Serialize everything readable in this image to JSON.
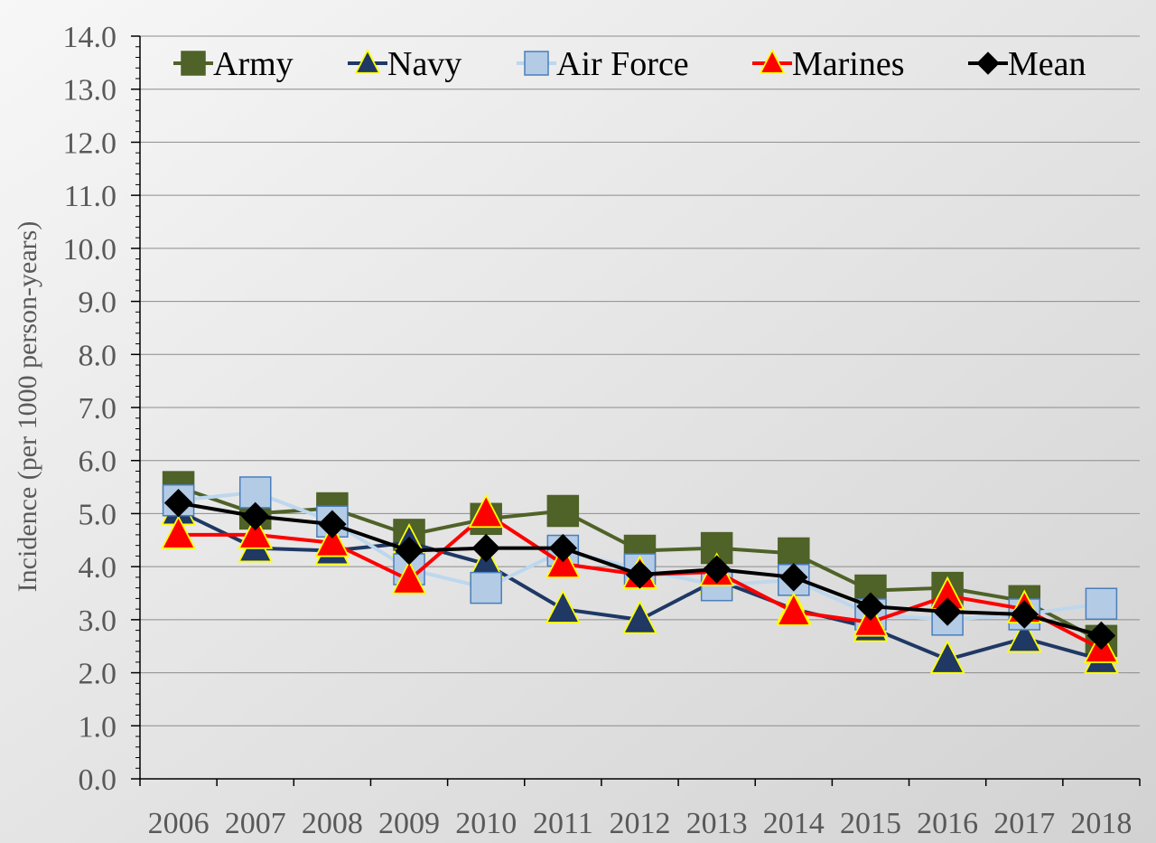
{
  "chart_data": {
    "type": "line",
    "title": "",
    "xlabel": "",
    "ylabel": "Incidence (per 1000 person-years)",
    "ylim": [
      0,
      14
    ],
    "yticks": [
      "0.0",
      "1.0",
      "2.0",
      "3.0",
      "4.0",
      "5.0",
      "6.0",
      "7.0",
      "8.0",
      "9.0",
      "10.0",
      "11.0",
      "12.0",
      "13.0",
      "14.0"
    ],
    "categories": [
      "2006",
      "2007",
      "2008",
      "2009",
      "2010",
      "2011",
      "2012",
      "2013",
      "2014",
      "2015",
      "2016",
      "2017",
      "2018"
    ],
    "grid": true,
    "legend_position": "top",
    "series": [
      {
        "name": "Army",
        "marker": "square",
        "color": "#4f6228",
        "marker_edge": "#4f6228",
        "values": [
          5.5,
          5.0,
          5.1,
          4.6,
          4.9,
          5.05,
          4.3,
          4.35,
          4.25,
          3.55,
          3.6,
          3.35,
          2.6
        ]
      },
      {
        "name": "Navy",
        "marker": "triangle",
        "color": "#1f3864",
        "marker_edge": "#ffff00",
        "values": [
          5.05,
          4.35,
          4.3,
          4.45,
          4.05,
          3.2,
          3.0,
          3.75,
          3.2,
          2.85,
          2.25,
          2.65,
          2.25
        ]
      },
      {
        "name": "Air Force",
        "marker": "square",
        "color": "#bdd7ee",
        "marker_edge": "#4a7ebb",
        "marker_fill": "#b4cbe6",
        "values": [
          5.25,
          5.4,
          4.85,
          3.95,
          3.6,
          4.3,
          3.95,
          3.65,
          3.75,
          3.1,
          3.0,
          3.1,
          3.3
        ]
      },
      {
        "name": "Marines",
        "marker": "triangle",
        "color": "#ff0000",
        "marker_edge": "#ffff00",
        "values": [
          4.6,
          4.6,
          4.45,
          3.75,
          5.0,
          4.05,
          3.85,
          3.9,
          3.15,
          2.95,
          3.45,
          3.2,
          2.45
        ]
      },
      {
        "name": "Mean",
        "marker": "diamond",
        "color": "#000000",
        "marker_edge": "#000000",
        "values": [
          5.2,
          4.95,
          4.8,
          4.3,
          4.35,
          4.35,
          3.85,
          3.95,
          3.8,
          3.25,
          3.15,
          3.1,
          2.7
        ]
      }
    ]
  }
}
